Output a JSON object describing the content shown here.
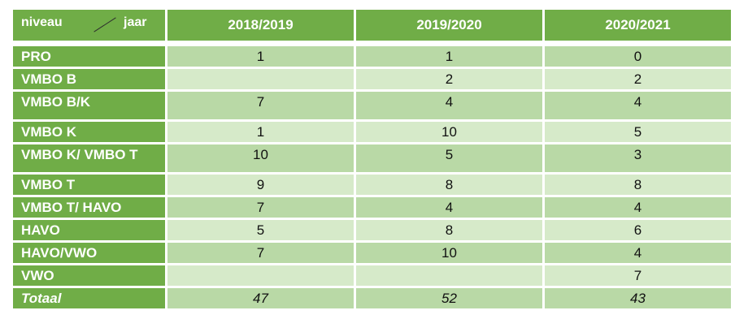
{
  "table": {
    "corner": {
      "left": "niveau",
      "right": "jaar"
    },
    "years": [
      "2018/2019",
      "2019/2020",
      "2020/2021"
    ],
    "rows": [
      {
        "niveau": "PRO",
        "values": [
          "1",
          "1",
          "0"
        ]
      },
      {
        "niveau": "VMBO B",
        "values": [
          "",
          "2",
          "2"
        ]
      },
      {
        "niveau": "VMBO B/K",
        "values": [
          "7",
          "4",
          "4"
        ]
      },
      {
        "niveau": "VMBO K",
        "values": [
          "1",
          "10",
          "5"
        ]
      },
      {
        "niveau": "VMBO K/ VMBO T",
        "values": [
          "10",
          "5",
          "3"
        ]
      },
      {
        "niveau": "VMBO T",
        "values": [
          "9",
          "8",
          "8"
        ]
      },
      {
        "niveau": "VMBO T/ HAVO",
        "values": [
          "7",
          "4",
          "4"
        ]
      },
      {
        "niveau": "HAVO",
        "values": [
          "5",
          "8",
          "6"
        ]
      },
      {
        "niveau": "HAVO/VWO",
        "values": [
          "7",
          "10",
          "4"
        ]
      },
      {
        "niveau": "VWO",
        "values": [
          "",
          "",
          "7"
        ]
      }
    ],
    "total": {
      "label": "Totaal",
      "values": [
        "47",
        "52",
        "43"
      ]
    }
  },
  "colors": {
    "header_green": "#70ad47",
    "cell_dark": "#b9d9a6",
    "cell_light": "#d6eac9"
  }
}
